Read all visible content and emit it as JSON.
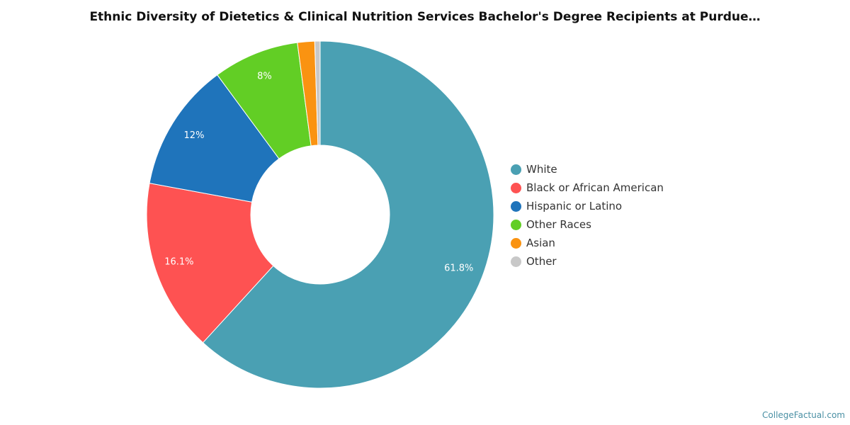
{
  "chart_data": {
    "type": "pie",
    "title": "Ethnic Diversity of Dietetics & Clinical Nutrition Services Bachelor's Degree Recipients at Purdue…",
    "donut": true,
    "legend_position": "right",
    "slices": [
      {
        "name": "White",
        "value": 61.8,
        "label": "61.8%",
        "color": "#4aa0b3"
      },
      {
        "name": "Black or African American",
        "value": 16.1,
        "label": "16.1%",
        "color": "#fe5252"
      },
      {
        "name": "Hispanic or Latino",
        "value": 12,
        "label": "12%",
        "color": "#1f74bb"
      },
      {
        "name": "Other Races",
        "value": 8,
        "label": "8%",
        "color": "#62ce25"
      },
      {
        "name": "Asian",
        "value": 1.6,
        "label": "",
        "color": "#fa9311"
      },
      {
        "name": "Other",
        "value": 0.5,
        "label": "",
        "color": "#c8c8c8"
      }
    ]
  },
  "credit": "CollegeFactual.com"
}
